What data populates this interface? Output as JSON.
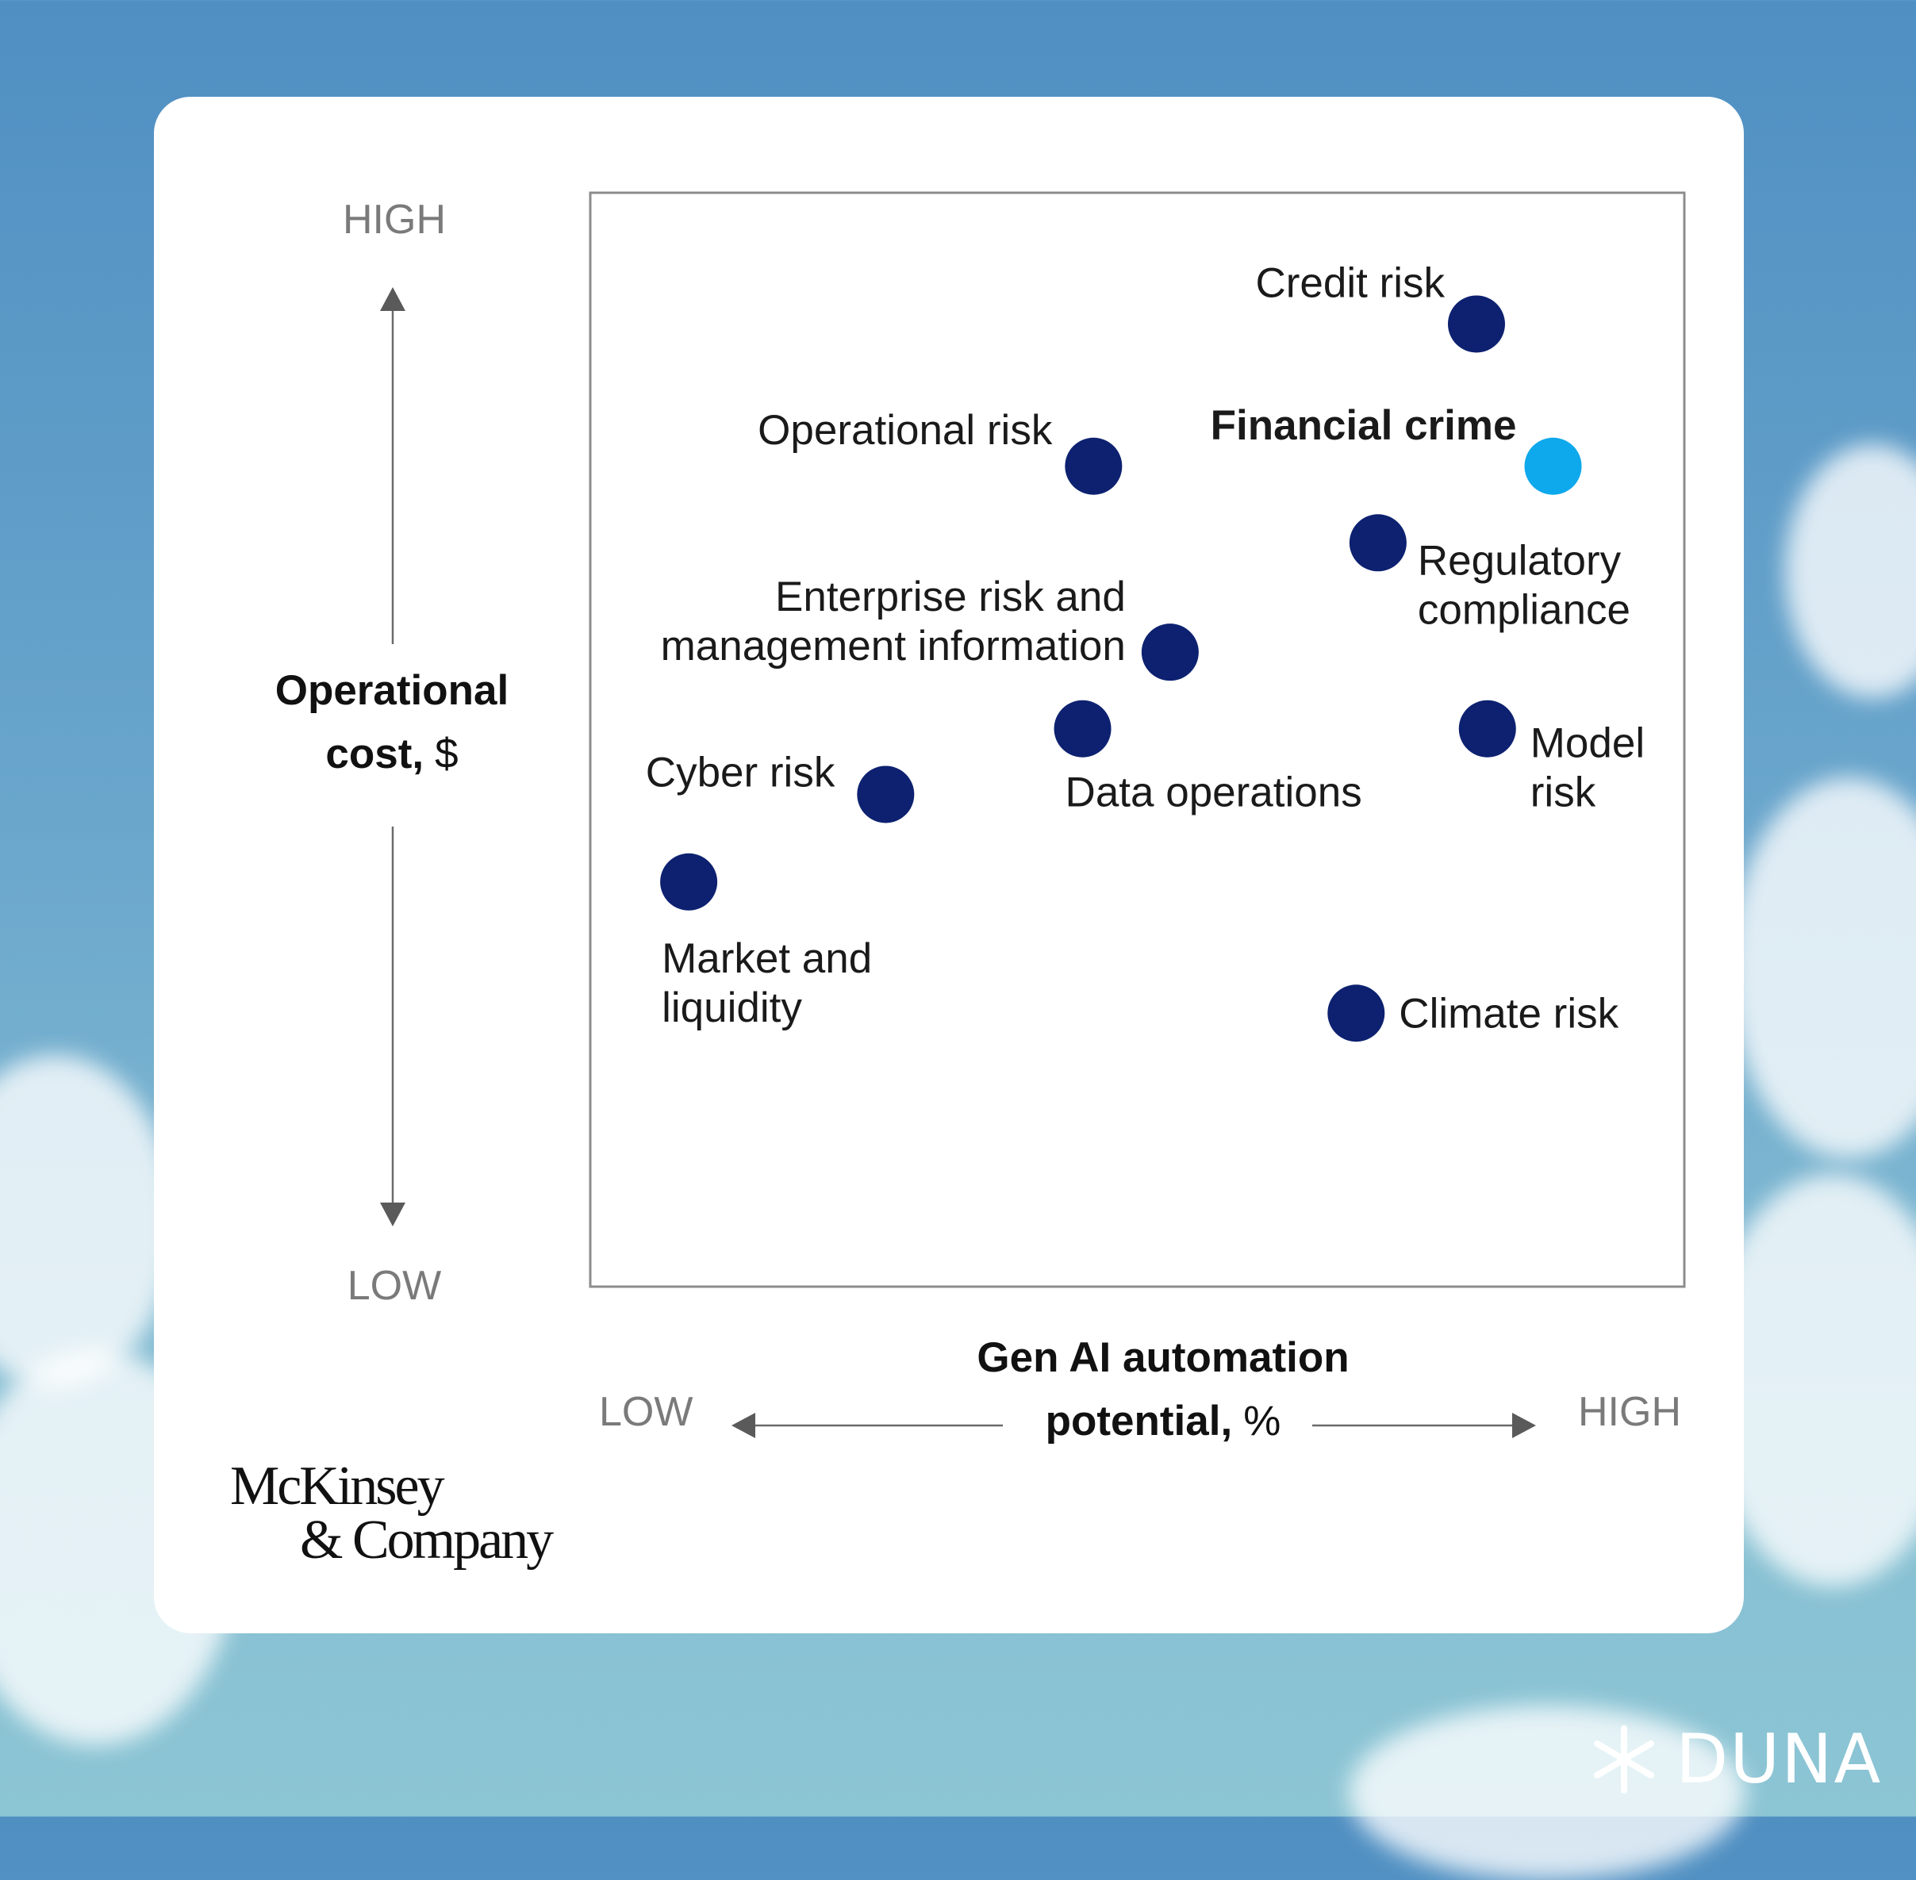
{
  "chart_data": {
    "type": "scatter",
    "title": "",
    "xlabel": "Gen AI automation potential, %",
    "xlabel_bold": "Gen AI automation",
    "xlabel_bold2": "potential,",
    "xlabel_unit": "%",
    "ylabel": "Operational cost, $",
    "ylabel_bold1": "Operational",
    "ylabel_bold2": "cost,",
    "ylabel_unit": "$",
    "x_low": "LOW",
    "x_high": "HIGH",
    "y_low": "LOW",
    "y_high": "HIGH",
    "xlim": [
      0,
      100
    ],
    "ylim": [
      0,
      100
    ],
    "grid": false,
    "colors": {
      "default": "#0d2170",
      "highlight": "#0ea8ec"
    },
    "points": [
      {
        "label_lines": [
          "Credit risk"
        ],
        "x": 81,
        "y": 88,
        "bold": false,
        "highlight": false
      },
      {
        "label_lines": [
          "Operational risk"
        ],
        "x": 46,
        "y": 75,
        "bold": false,
        "highlight": false
      },
      {
        "label_lines": [
          "Financial crime"
        ],
        "x": 88,
        "y": 75,
        "bold": true,
        "highlight": true
      },
      {
        "label_lines": [
          "Regulatory",
          "compliance"
        ],
        "x": 72,
        "y": 68,
        "bold": false,
        "highlight": false
      },
      {
        "label_lines": [
          "Enterprise risk and",
          "management information"
        ],
        "x": 53,
        "y": 58,
        "bold": false,
        "highlight": false
      },
      {
        "label_lines": [
          "Data operations"
        ],
        "x": 45,
        "y": 51,
        "bold": false,
        "highlight": false
      },
      {
        "label_lines": [
          "Model",
          "risk"
        ],
        "x": 82,
        "y": 51,
        "bold": false,
        "highlight": false
      },
      {
        "label_lines": [
          "Cyber risk"
        ],
        "x": 27,
        "y": 45,
        "bold": false,
        "highlight": false
      },
      {
        "label_lines": [
          "Market and",
          "liquidity"
        ],
        "x": 9,
        "y": 37,
        "bold": false,
        "highlight": false
      },
      {
        "label_lines": [
          "Climate risk"
        ],
        "x": 70,
        "y": 25,
        "bold": false,
        "highlight": false
      }
    ]
  },
  "branding": {
    "logo_line1": "McKinsey",
    "logo_line2": "& Company",
    "watermark": "DUNA"
  }
}
